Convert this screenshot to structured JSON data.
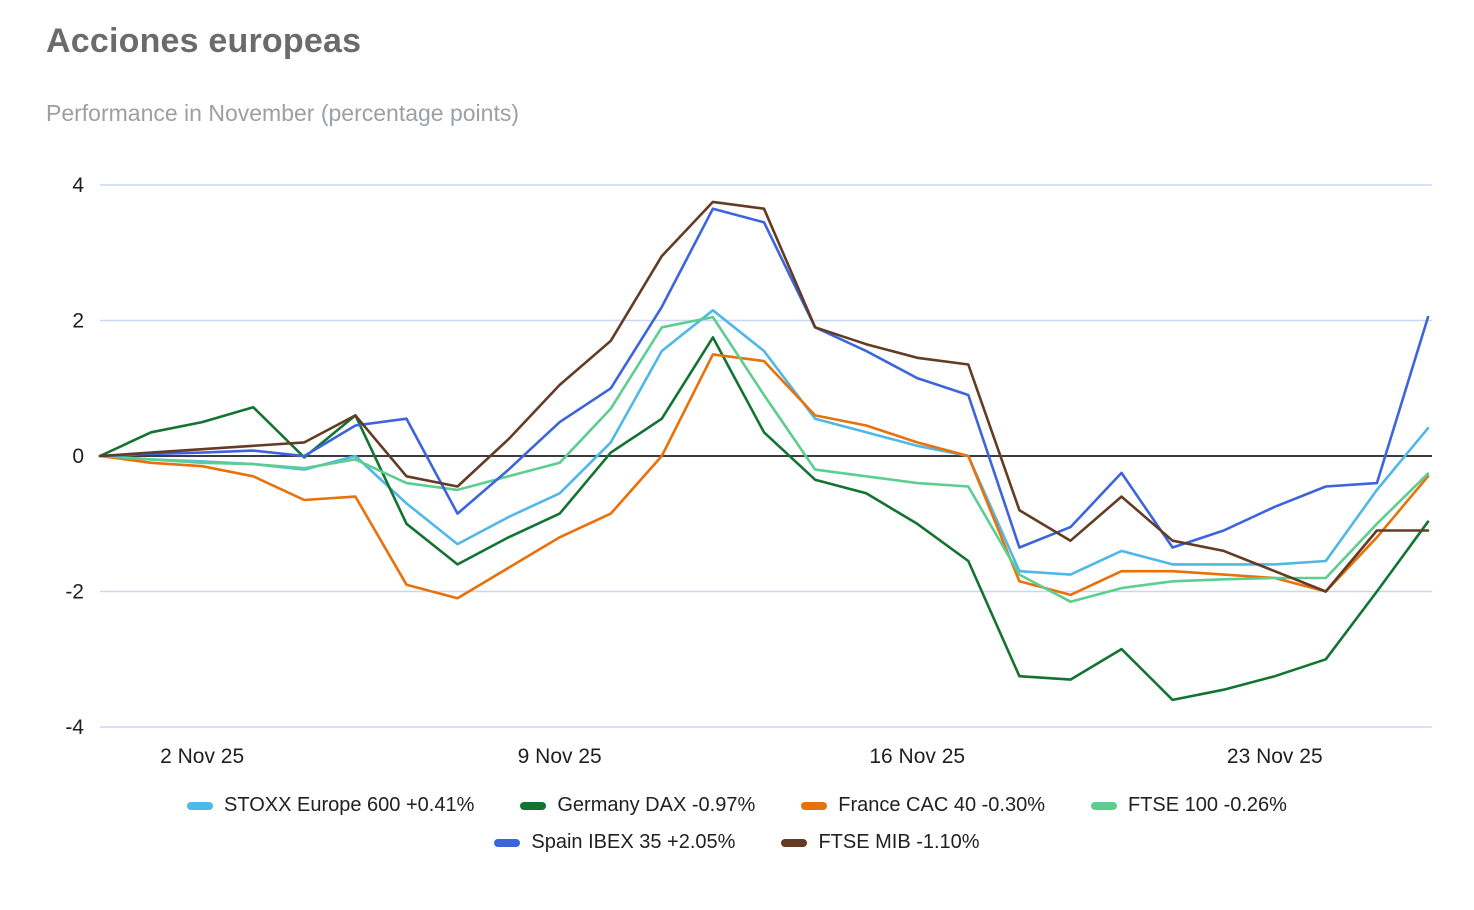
{
  "header": {
    "title": "Acciones europeas",
    "subtitle": "Performance in November (percentage points)"
  },
  "chart_data": {
    "type": "line",
    "title": "Acciones europeas",
    "subtitle": "Performance in November (percentage points)",
    "ylabel": "percentage points",
    "ylim": [
      -4,
      4
    ],
    "y_ticks": [
      4,
      2,
      0,
      -2,
      -4
    ],
    "grid": "horizontal",
    "zero_line": true,
    "legend_position": "bottom",
    "x_points": 27,
    "x_ticks": [
      {
        "day": 2,
        "label": "2 Nov 25"
      },
      {
        "day": 9,
        "label": "9 Nov 25"
      },
      {
        "day": 16,
        "label": "16 Nov 25"
      },
      {
        "day": 23,
        "label": "23 Nov 25"
      }
    ],
    "colors": {
      "grid": "#c9d6f5",
      "zero_line": "#202124",
      "axis_text": "#1f1f1f"
    },
    "series": [
      {
        "name": "STOXX Europe 600",
        "label": "STOXX Europe 600 +0.41%",
        "final_change_pct": 0.41,
        "color": "#4fb8e8",
        "values": [
          0,
          -0.05,
          -0.08,
          -0.12,
          -0.2,
          0,
          -0.7,
          -1.3,
          -0.9,
          -0.55,
          0.2,
          1.55,
          2.15,
          1.55,
          0.55,
          0.35,
          0.15,
          0,
          -1.7,
          -1.75,
          -1.4,
          -1.6,
          -1.6,
          -1.6,
          -1.55,
          -0.5,
          0.41
        ]
      },
      {
        "name": "Germany DAX",
        "label": "Germany DAX -0.97%",
        "final_change_pct": -0.97,
        "color": "#137333",
        "values": [
          0,
          0.35,
          0.5,
          0.72,
          -0.02,
          0.6,
          -1.0,
          -1.6,
          -1.2,
          -0.85,
          0.05,
          0.55,
          1.75,
          0.35,
          -0.35,
          -0.55,
          -1.0,
          -1.55,
          -3.25,
          -3.3,
          -2.85,
          -3.6,
          -3.45,
          -3.25,
          -3.0,
          -2.0,
          -0.97
        ]
      },
      {
        "name": "France CAC 40",
        "label": "France CAC 40 -0.30%",
        "final_change_pct": -0.3,
        "color": "#e8710a",
        "values": [
          0,
          -0.1,
          -0.15,
          -0.3,
          -0.65,
          -0.6,
          -1.9,
          -2.1,
          -1.65,
          -1.2,
          -0.85,
          0,
          1.5,
          1.4,
          0.6,
          0.45,
          0.2,
          0,
          -1.85,
          -2.05,
          -1.7,
          -1.7,
          -1.75,
          -1.8,
          -2.0,
          -1.2,
          -0.3
        ]
      },
      {
        "name": "FTSE 100",
        "label": "FTSE 100 -0.26%",
        "final_change_pct": -0.26,
        "color": "#5cce8f",
        "values": [
          0,
          -0.05,
          -0.1,
          -0.12,
          -0.18,
          -0.05,
          -0.4,
          -0.5,
          -0.3,
          -0.1,
          0.7,
          1.9,
          2.05,
          0.9,
          -0.2,
          -0.3,
          -0.4,
          -0.45,
          -1.75,
          -2.15,
          -1.95,
          -1.85,
          -1.82,
          -1.8,
          -1.8,
          -1.0,
          -0.26
        ]
      },
      {
        "name": "Spain IBEX 35",
        "label": "Spain IBEX 35 +2.05%",
        "final_change_pct": 2.05,
        "color": "#3c64dc",
        "values": [
          0,
          0.03,
          0.05,
          0.08,
          0,
          0.45,
          0.55,
          -0.85,
          -0.2,
          0.5,
          1.0,
          2.2,
          3.65,
          3.45,
          1.9,
          1.55,
          1.15,
          0.9,
          -1.35,
          -1.05,
          -0.25,
          -1.35,
          -1.1,
          -0.75,
          -0.45,
          -0.4,
          2.05
        ]
      },
      {
        "name": "FTSE MIB",
        "label": "FTSE MIB -1.10%",
        "final_change_pct": -1.1,
        "color": "#633c23",
        "values": [
          0,
          0.05,
          0.1,
          0.15,
          0.2,
          0.6,
          -0.3,
          -0.45,
          0.25,
          1.05,
          1.7,
          2.95,
          3.75,
          3.65,
          1.9,
          1.65,
          1.45,
          1.35,
          -0.8,
          -1.25,
          -0.6,
          -1.25,
          -1.4,
          -1.7,
          -2.0,
          -1.1,
          -1.1
        ]
      }
    ]
  }
}
